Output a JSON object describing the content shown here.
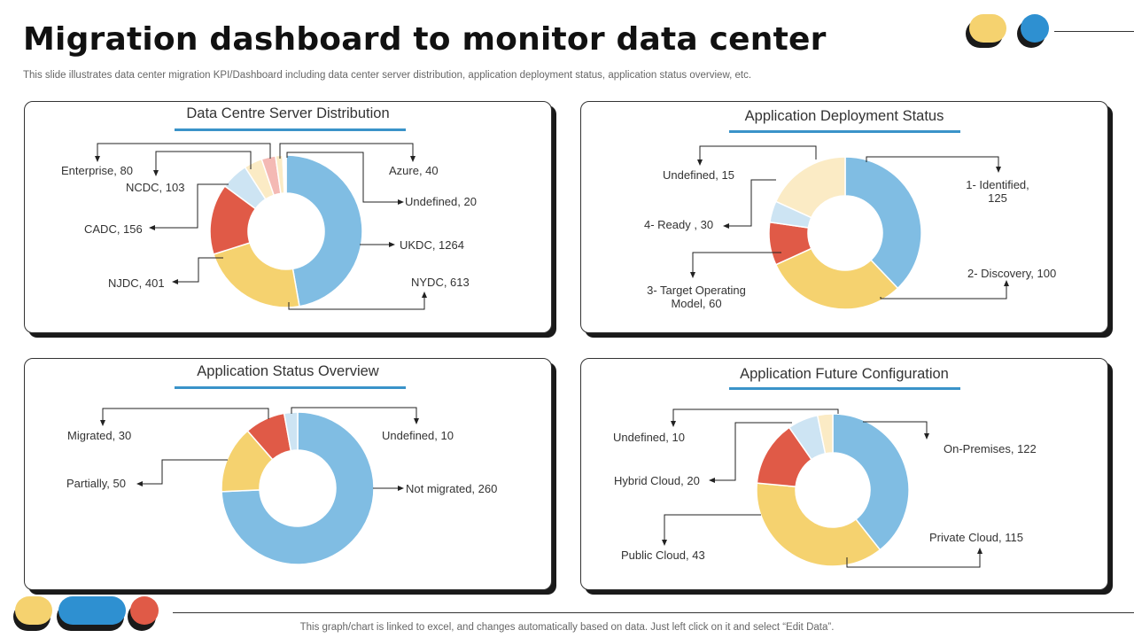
{
  "header": {
    "title": "Migration dashboard to monitor data center",
    "subtitle": "This slide illustrates data center migration KPI/Dashboard including data center server distribution, application deployment status, application status overview, etc."
  },
  "footer": {
    "note": "This graph/chart is linked to excel,  and changes automatically based on data. Just left click on it and select “Edit Data”."
  },
  "colors": {
    "blue": "#80bde3",
    "yellow": "#f5d26f",
    "red": "#e05a47",
    "light_blue": "#cde4f3",
    "cream": "#fbebc5",
    "pink": "#f4b9b4",
    "accent_line": "#3a93c9",
    "deco_yellow": "#f5d26f",
    "deco_blue": "#2e90d1",
    "deco_red": "#e05a47",
    "deco_shadow": "#1a1a1a"
  },
  "chart_data": [
    {
      "type": "pie",
      "title": "Data Centre Server Distribution",
      "slices": [
        {
          "label": "UKDC",
          "value": 1264,
          "display": "UKDC,  1264",
          "color": "#80bde3"
        },
        {
          "label": "NYDC",
          "value": 613,
          "display": "NYDC,  613",
          "color": "#f5d26f"
        },
        {
          "label": "NJDC",
          "value": 401,
          "display": "NJDC,  401",
          "color": "#e05a47"
        },
        {
          "label": "CADC",
          "value": 156,
          "display": "CADC,  156",
          "color": "#cde4f3"
        },
        {
          "label": "NCDC",
          "value": 103,
          "display": "NCDC,  103",
          "color": "#fbebc5"
        },
        {
          "label": "Enterprise",
          "value": 80,
          "display": "Enterprise,  80",
          "color": "#f4b9b4"
        },
        {
          "label": "Azure",
          "value": 40,
          "display": "Azure,  40",
          "color": "#fbebc5"
        },
        {
          "label": "Undefined",
          "value": 20,
          "display": "Undefined,  20",
          "color": "#ffffff"
        }
      ]
    },
    {
      "type": "pie",
      "title": "Application Deployment Status",
      "slices": [
        {
          "label": "1- Identified",
          "value": 125,
          "display": "1- Identified,\n125",
          "color": "#80bde3"
        },
        {
          "label": "2- Discovery",
          "value": 100,
          "display": "2- Discovery,  100",
          "color": "#f5d26f"
        },
        {
          "label": "4- Ready",
          "value": 30,
          "display": "4- Ready ,  30",
          "color": "#e05a47"
        },
        {
          "label": "Undefined",
          "value": 15,
          "display": "Undefined,  15",
          "color": "#cde4f3"
        },
        {
          "label": "3- Target Operating Model",
          "value": 60,
          "display": "3- Target Operating\nModel,  60",
          "color": "#fbebc5"
        }
      ]
    },
    {
      "type": "pie",
      "title": "Application Status  Overview",
      "slices": [
        {
          "label": "Not migrated",
          "value": 260,
          "display": "Not migrated,  260",
          "color": "#80bde3"
        },
        {
          "label": "Partially",
          "value": 50,
          "display": "Partially,  50",
          "color": "#f5d26f"
        },
        {
          "label": "Migrated",
          "value": 30,
          "display": "Migrated,  30",
          "color": "#e05a47"
        },
        {
          "label": "Undefined",
          "value": 10,
          "display": "Undefined,  10",
          "color": "#cde4f3"
        }
      ]
    },
    {
      "type": "pie",
      "title": "Application Future Configuration",
      "slices": [
        {
          "label": "On-Premises",
          "value": 122,
          "display": "On-Premises,  122",
          "color": "#80bde3"
        },
        {
          "label": "Private Cloud",
          "value": 115,
          "display": "Private Cloud,  115",
          "color": "#f5d26f"
        },
        {
          "label": "Public Cloud",
          "value": 43,
          "display": "Public Cloud,  43",
          "color": "#e05a47"
        },
        {
          "label": "Hybrid Cloud",
          "value": 20,
          "display": "Hybrid Cloud,  20",
          "color": "#cde4f3"
        },
        {
          "label": "Undefined",
          "value": 10,
          "display": "Undefined,  10",
          "color": "#fbebc5"
        }
      ]
    }
  ]
}
